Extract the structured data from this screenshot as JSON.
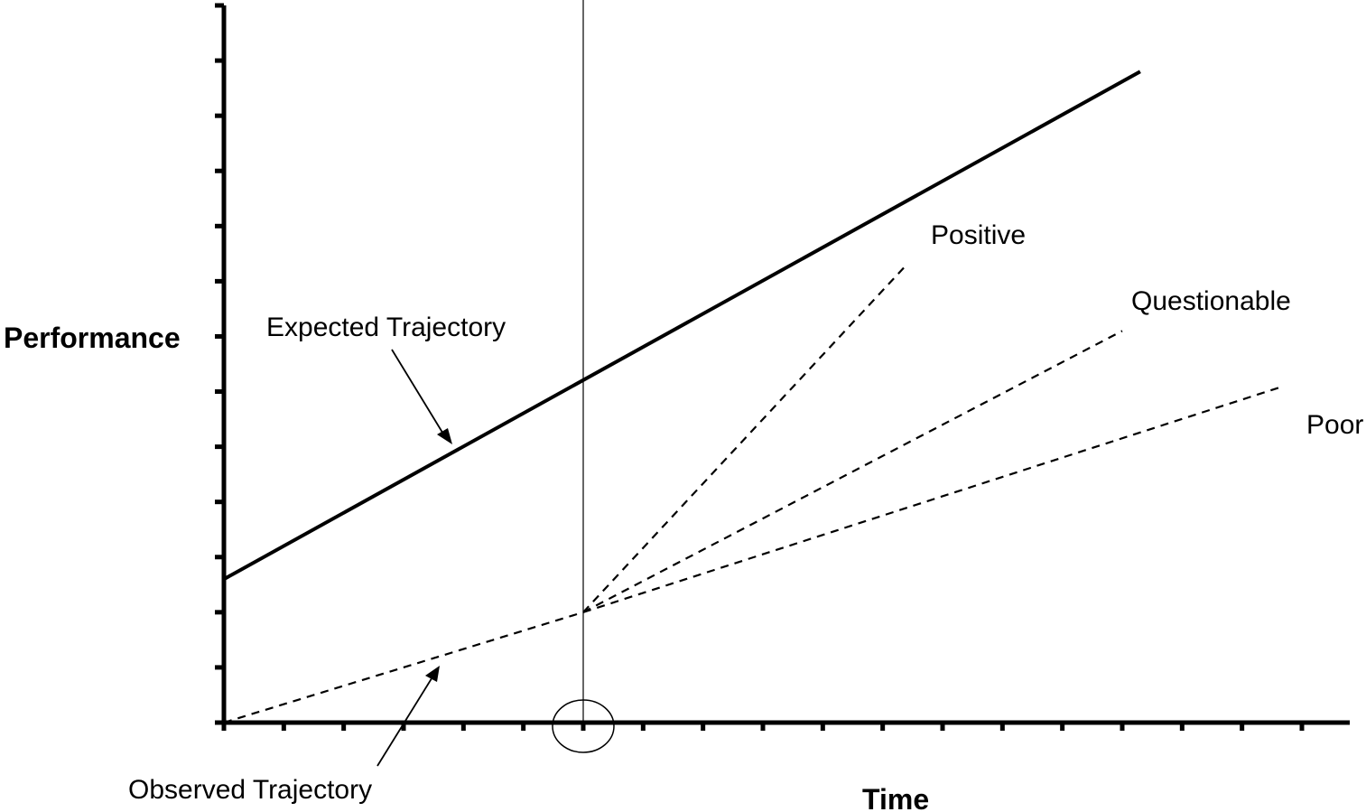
{
  "chart_data": {
    "type": "line",
    "title": "",
    "xlabel": "Time",
    "ylabel": "Performance",
    "xlim": [
      0,
      18
    ],
    "ylim": [
      0,
      13
    ],
    "x_ticks_count": 19,
    "y_ticks_count": 14,
    "grid": false,
    "reference_line": {
      "x": 6,
      "name": "",
      "marker": "circle"
    },
    "series": [
      {
        "name": "Expected Trajectory",
        "style": "solid",
        "points": [
          [
            0,
            2.6
          ],
          [
            15.3,
            11.8
          ]
        ]
      },
      {
        "name": "Observed Trajectory",
        "style": "dashed",
        "points": [
          [
            0,
            0
          ],
          [
            6,
            2.0
          ]
        ]
      },
      {
        "name": "Positive",
        "style": "dashed",
        "points": [
          [
            6,
            2.0
          ],
          [
            11.4,
            8.3
          ]
        ]
      },
      {
        "name": "Questionable",
        "style": "dashed",
        "points": [
          [
            6,
            2.0
          ],
          [
            15,
            7.1
          ]
        ]
      },
      {
        "name": "Poor",
        "style": "dashed",
        "points": [
          [
            6,
            2.0
          ],
          [
            17.7,
            6.1
          ]
        ]
      }
    ],
    "annotations": [
      "Expected Trajectory",
      "Observed Trajectory",
      "Positive",
      "Questionable",
      "Poor"
    ]
  }
}
